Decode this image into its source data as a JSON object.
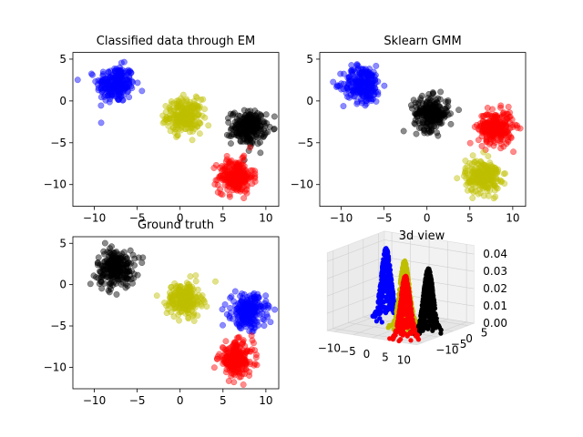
{
  "figure": {
    "background": "#ffffff"
  },
  "chart_data": [
    {
      "type": "scatter",
      "title": "Classified data through EM",
      "xlim": [
        -12.5,
        11.5
      ],
      "ylim": [
        -12.6,
        5.8
      ],
      "xticks": [
        -10,
        -5,
        0,
        5,
        10
      ],
      "yticks": [
        5,
        0,
        -5,
        -10
      ],
      "xtick_labels": [
        "−10",
        "−5",
        "0",
        "5",
        "10"
      ],
      "ytick_labels": [
        "5",
        "0",
        "−5",
        "−10"
      ],
      "marker_alpha": 0.45,
      "clusters": [
        {
          "color": "#0000ff",
          "center": [
            -7.5,
            2.0
          ],
          "spread": 1.1,
          "count": 240
        },
        {
          "color": "#bfbf00",
          "center": [
            0.5,
            -1.8
          ],
          "spread": 1.0,
          "count": 240
        },
        {
          "color": "#000000",
          "center": [
            8.0,
            -3.2
          ],
          "spread": 1.0,
          "count": 240
        },
        {
          "color": "#ff0000",
          "center": [
            6.5,
            -9.0
          ],
          "spread": 1.0,
          "count": 240
        }
      ]
    },
    {
      "type": "scatter",
      "title": "Sklearn GMM",
      "xlim": [
        -12.5,
        11.5
      ],
      "ylim": [
        -12.6,
        5.8
      ],
      "xticks": [
        -10,
        -5,
        0,
        5,
        10
      ],
      "yticks": [
        5,
        0,
        -5,
        -10
      ],
      "xtick_labels": [
        "−10",
        "−5",
        "0",
        "5",
        "10"
      ],
      "ytick_labels": [
        "5",
        "0",
        "−5",
        "−10"
      ],
      "marker_alpha": 0.45,
      "clusters": [
        {
          "color": "#0000ff",
          "center": [
            -7.5,
            2.0
          ],
          "spread": 1.1,
          "count": 240
        },
        {
          "color": "#000000",
          "center": [
            0.5,
            -1.5
          ],
          "spread": 1.0,
          "count": 240
        },
        {
          "color": "#ff0000",
          "center": [
            8.0,
            -3.2
          ],
          "spread": 1.0,
          "count": 240
        },
        {
          "color": "#bfbf00",
          "center": [
            6.5,
            -9.0
          ],
          "spread": 1.0,
          "count": 240
        }
      ]
    },
    {
      "type": "scatter",
      "title": "Ground truth",
      "xlim": [
        -12.5,
        11.5
      ],
      "ylim": [
        -12.6,
        5.8
      ],
      "xticks": [
        -10,
        -5,
        0,
        5,
        10
      ],
      "yticks": [
        5,
        0,
        -5,
        -10
      ],
      "xtick_labels": [
        "−10",
        "−5",
        "0",
        "5",
        "10"
      ],
      "ytick_labels": [
        "5",
        "0",
        "−5",
        "−10"
      ],
      "marker_alpha": 0.45,
      "clusters": [
        {
          "color": "#000000",
          "center": [
            -7.5,
            2.0
          ],
          "spread": 1.1,
          "count": 240
        },
        {
          "color": "#bfbf00",
          "center": [
            0.5,
            -1.8
          ],
          "spread": 1.0,
          "count": 240
        },
        {
          "color": "#0000ff",
          "center": [
            8.0,
            -3.2
          ],
          "spread": 1.0,
          "count": 240
        },
        {
          "color": "#ff0000",
          "center": [
            6.5,
            -9.0
          ],
          "spread": 1.0,
          "count": 240
        }
      ]
    },
    {
      "type": "scatter3d",
      "title": "3d view",
      "xticks": [
        -10,
        -5,
        0,
        5,
        10
      ],
      "yticks": [
        -10,
        -5,
        0,
        5
      ],
      "zticks": [
        0.0,
        0.01,
        0.02,
        0.03,
        0.04
      ],
      "xtick_labels": [
        "−10",
        "−5",
        "0",
        "5",
        "10"
      ],
      "ytick_labels": [
        "−10",
        "−5",
        "0",
        "5"
      ],
      "ztick_labels": [
        "0.00",
        "0.01",
        "0.02",
        "0.03",
        "0.04"
      ],
      "xlim": [
        -12,
        12
      ],
      "ylim": [
        -12,
        7
      ],
      "zlim": [
        0,
        0.045
      ],
      "peaks": [
        {
          "color": "#0000ff",
          "center": [
            -7.5,
            2.0
          ],
          "height": 0.04
        },
        {
          "color": "#bfbf00",
          "center": [
            0.5,
            -1.8
          ],
          "height": 0.038
        },
        {
          "color": "#ff0000",
          "center": [
            6.5,
            -9.0
          ],
          "height": 0.036
        },
        {
          "color": "#000000",
          "center": [
            8.0,
            -3.2
          ],
          "height": 0.037
        }
      ]
    }
  ]
}
